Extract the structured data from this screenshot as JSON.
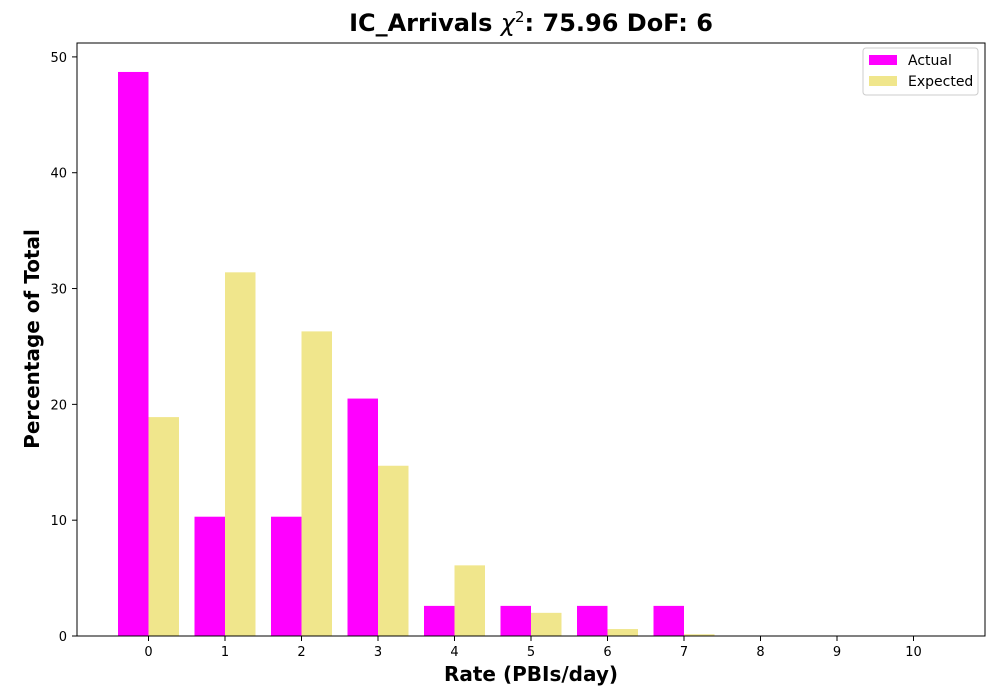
{
  "chart_data": {
    "type": "bar",
    "title_prefix": "IC_Arrivals ",
    "title_chi": "χ",
    "title_sup": "2",
    "title_suffix": ": 75.96 DoF: 6",
    "xlabel": "Rate (PBIs/day)",
    "ylabel": "Percentage of Total",
    "categories": [
      "0",
      "1",
      "2",
      "3",
      "4",
      "5",
      "6",
      "7",
      "8",
      "9",
      "10"
    ],
    "series": [
      {
        "name": "Actual",
        "color": "#ff00ff",
        "values": [
          48.7,
          10.3,
          10.3,
          20.5,
          2.6,
          2.6,
          2.6,
          2.6,
          0,
          0,
          0
        ]
      },
      {
        "name": "Expected",
        "color": "#f0e68c",
        "values": [
          18.9,
          31.4,
          26.3,
          14.7,
          6.1,
          2.0,
          0.6,
          0.15,
          0.04,
          0.01,
          0.0
        ]
      }
    ],
    "ylim": [
      0,
      51.2
    ],
    "yticks": [
      0,
      10,
      20,
      30,
      40,
      50
    ],
    "legend_position": "top-right",
    "grid": false
  }
}
